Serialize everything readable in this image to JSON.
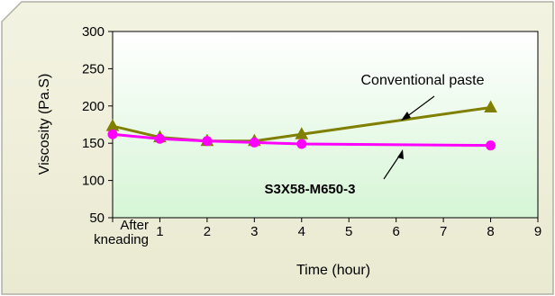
{
  "chart_data": {
    "type": "line",
    "xlabel": "Time (hour)",
    "ylabel": "Viscosity (Pa.S)",
    "xlim": [
      0,
      9
    ],
    "ylim": [
      50,
      300
    ],
    "x_ticks": [
      {
        "value": 0,
        "label": "After\nkneading"
      },
      {
        "value": 1,
        "label": "1"
      },
      {
        "value": 2,
        "label": "2"
      },
      {
        "value": 3,
        "label": "3"
      },
      {
        "value": 4,
        "label": "4"
      },
      {
        "value": 5,
        "label": "5"
      },
      {
        "value": 6,
        "label": "6"
      },
      {
        "value": 7,
        "label": "7"
      },
      {
        "value": 8,
        "label": "8"
      },
      {
        "value": 9,
        "label": "9"
      }
    ],
    "y_ticks": [
      50,
      100,
      150,
      200,
      250,
      300
    ],
    "series": [
      {
        "name": "Conventional paste",
        "color": "#808000",
        "marker": "triangle",
        "x": [
          0,
          1,
          2,
          3,
          4,
          8
        ],
        "y": [
          173,
          158,
          153,
          153,
          162,
          198
        ]
      },
      {
        "name": "S3X58-M650-3",
        "color": "#ff00ff",
        "marker": "circle",
        "x": [
          0,
          1,
          2,
          3,
          4,
          8
        ],
        "y": [
          162,
          156,
          153,
          151,
          149,
          147
        ]
      }
    ],
    "annotations": [
      {
        "text": "Conventional paste",
        "series": 0,
        "style": "normal"
      },
      {
        "text": "S3X58-M650-3",
        "series": 1,
        "style": "bold"
      }
    ],
    "grid": false,
    "legend": "none",
    "colors": {
      "frame_fill": "#f0f0dc",
      "frame_border": "#a9a9a0",
      "plot_top": "#ffffff",
      "plot_bottom": "#d6f5d6"
    }
  }
}
